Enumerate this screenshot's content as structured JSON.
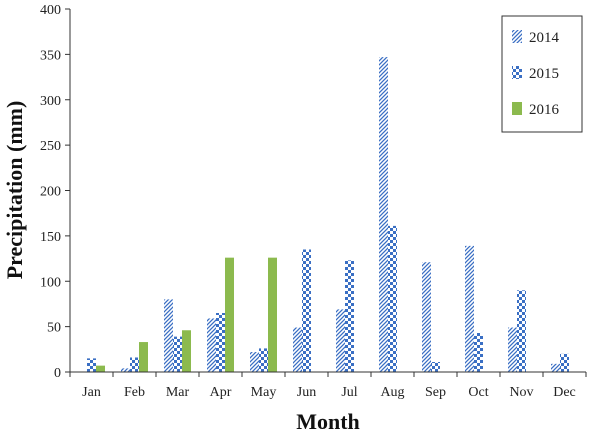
{
  "chart_data": {
    "type": "bar",
    "title": "",
    "xlabel": "Month",
    "ylabel": "Precipitation (mm)",
    "ylim": [
      0,
      400
    ],
    "yticks": [
      0,
      50,
      100,
      150,
      200,
      250,
      300,
      350,
      400
    ],
    "categories": [
      "Jan",
      "Feb",
      "Mar",
      "Apr",
      "May",
      "Jun",
      "Jul",
      "Aug",
      "Sep",
      "Oct",
      "Nov",
      "Dec"
    ],
    "grid": false,
    "legend_position": "top-right",
    "series": [
      {
        "name": "2014",
        "pattern": "diagonal-stripes",
        "color": "#3a6fc4",
        "values": [
          0,
          4,
          80,
          59,
          22,
          49,
          69,
          347,
          121,
          139,
          49,
          9
        ]
      },
      {
        "name": "2015",
        "pattern": "checker",
        "color": "#3a6fc4",
        "values": [
          15,
          16,
          39,
          65,
          26,
          135,
          123,
          161,
          11,
          43,
          90,
          20
        ]
      },
      {
        "name": "2016",
        "pattern": "solid",
        "color": "#8cba4e",
        "values": [
          7,
          33,
          46,
          126,
          126,
          null,
          null,
          null,
          null,
          null,
          null,
          null
        ]
      }
    ]
  }
}
